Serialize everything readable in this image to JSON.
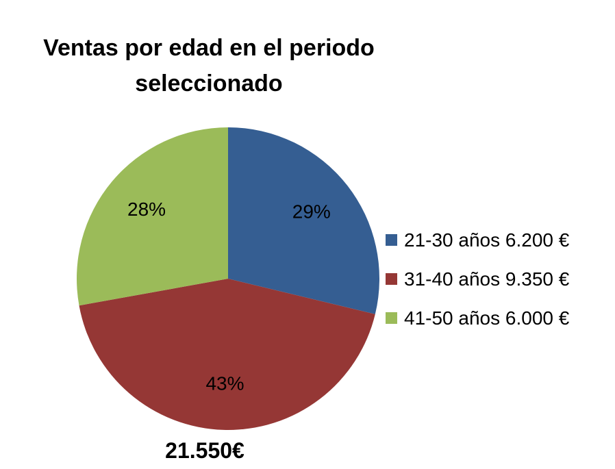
{
  "chart_data": {
    "type": "pie",
    "title": [
      "Ventas por edad en el periodo",
      "seleccionado"
    ],
    "categories": [
      "21-30 años 6.200 €",
      "31-40 años 9.350 €",
      "41-50 años 6.000 €"
    ],
    "values": [
      6200,
      9350,
      6000
    ],
    "percent_labels": [
      "29%",
      "43%",
      "28%"
    ],
    "colors": [
      "#355E92",
      "#953735",
      "#9BBB59"
    ],
    "legend": "right",
    "total_label": "21.550€"
  }
}
